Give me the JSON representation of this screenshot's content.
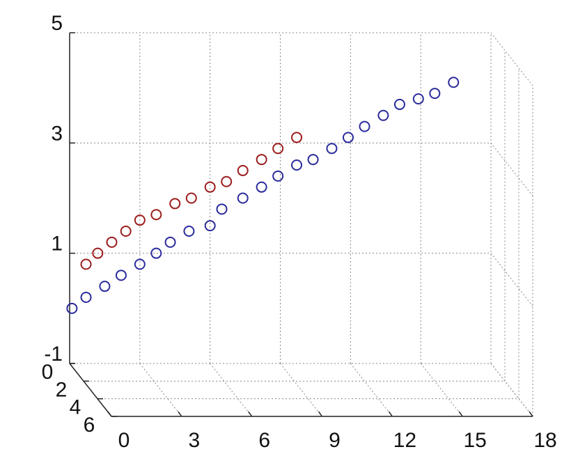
{
  "chart_data": {
    "type": "scatter3d",
    "xlim": [
      0,
      18
    ],
    "xticks": [
      0,
      3,
      6,
      9,
      12,
      15,
      18
    ],
    "ylim": [
      0,
      6
    ],
    "yticks": [
      0,
      2,
      4,
      6
    ],
    "zlim": [
      -1,
      5
    ],
    "zticks": [
      -1,
      1,
      3,
      5
    ],
    "grid": true,
    "series": [
      {
        "color": "#2a2a9c",
        "x": [
          0.1,
          0.7,
          1.5,
          2.2,
          3.0,
          3.7,
          4.3,
          5.1,
          6.0,
          6.5,
          7.4,
          8.2,
          8.9,
          9.7,
          10.4,
          11.2,
          11.9,
          12.6,
          13.4,
          14.1,
          14.9,
          15.6,
          16.4
        ],
        "values": [
          0.0,
          0.2,
          0.4,
          0.6,
          0.8,
          1.0,
          1.2,
          1.4,
          1.5,
          1.8,
          2.0,
          2.2,
          2.4,
          2.6,
          2.7,
          2.9,
          3.1,
          3.3,
          3.5,
          3.7,
          3.8,
          3.9,
          4.1
        ]
      },
      {
        "color": "#9c1c1c",
        "x": [
          0.7,
          1.2,
          1.8,
          2.4,
          3.0,
          3.7,
          4.5,
          5.2,
          6.0,
          6.7,
          7.4,
          8.2,
          8.9,
          9.7
        ],
        "values": [
          0.8,
          1.0,
          1.2,
          1.4,
          1.6,
          1.7,
          1.9,
          2.0,
          2.2,
          2.3,
          2.5,
          2.7,
          2.9,
          3.1
        ]
      }
    ]
  }
}
